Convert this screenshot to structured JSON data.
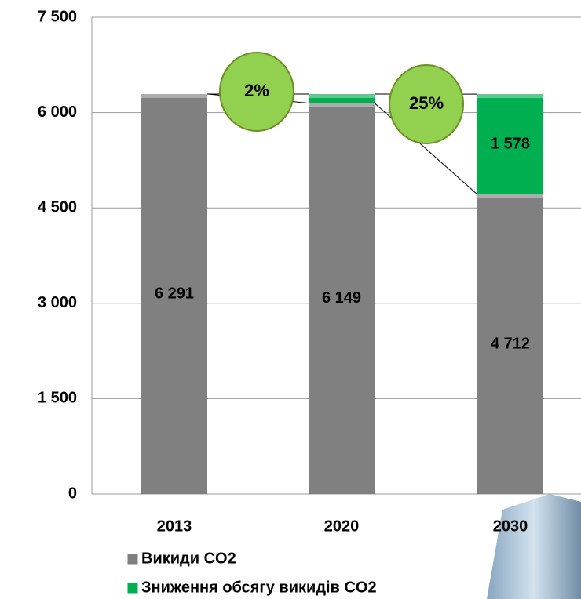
{
  "chart_data": {
    "type": "stacked_bar",
    "categories": [
      "2013",
      "2020",
      "2030"
    ],
    "series": [
      {
        "name": "Викиди CO2",
        "color": "#808080",
        "values": [
          6291,
          6149,
          4712
        ],
        "value_labels": [
          "6 291",
          "6 149",
          "4 712"
        ]
      },
      {
        "name": "Зниження обсягу викидів CO2",
        "color": "#00b050",
        "values": [
          0,
          142,
          1578
        ],
        "value_labels": [
          null,
          null,
          "1 578"
        ]
      }
    ],
    "annotations": [
      "2%",
      "25%"
    ],
    "ylim": [
      0,
      7500
    ],
    "yticks": [
      0,
      {
        "value": 1500,
        "label": "1 500"
      },
      {
        "value": 3000,
        "label": "3 000"
      },
      {
        "value": 4500,
        "label": "4 500"
      },
      {
        "value": 6000,
        "label": "6 000"
      },
      {
        "value": 7500,
        "label": "7 500"
      }
    ],
    "grid": true
  }
}
